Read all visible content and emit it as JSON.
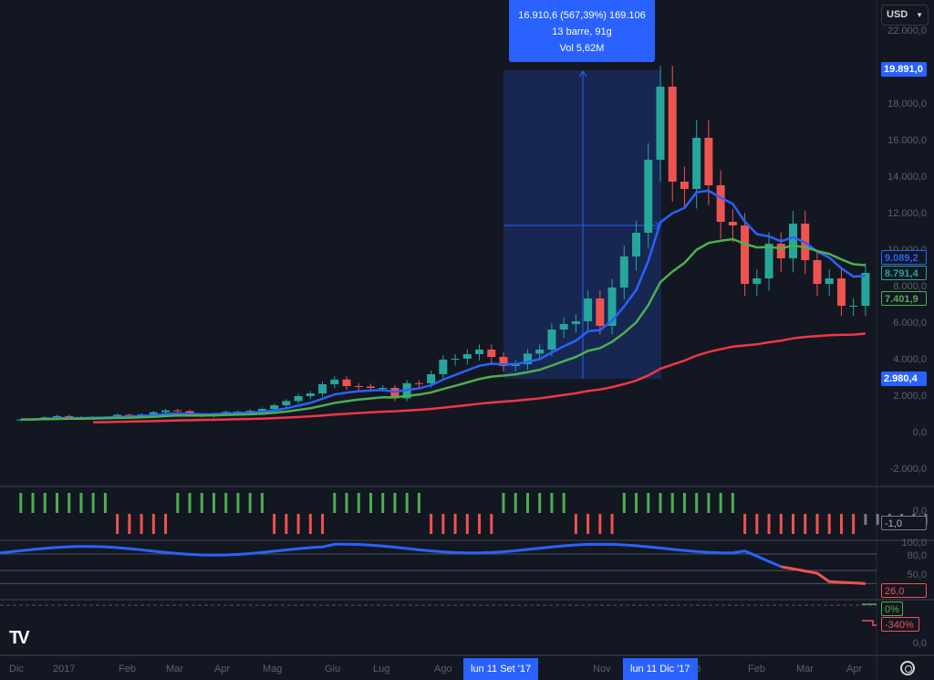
{
  "currency": {
    "label": "USD"
  },
  "colors": {
    "up": "#26a69a",
    "down": "#ef5350",
    "ma_fast": "#2962ff",
    "ma_mid": "#4caf50",
    "ma_slow": "#f23645",
    "bg": "#131722",
    "accent": "#2962ff",
    "neutral": "#787b86"
  },
  "measure": {
    "line1": "16.910,6 (567,39%) 169.106",
    "line2": "13 barre, 91g",
    "line3": "Vol 5,62M"
  },
  "price_axis": {
    "ticks": [
      "22.000,0",
      "18.000,0",
      "16.000,0",
      "14.000,0",
      "12.000,0",
      "10.000,0",
      "8.000,0",
      "6.000,0",
      "4.000,0",
      "2.000,0",
      "0,0",
      "-2.000,0"
    ],
    "tick_values": [
      22000,
      18000,
      16000,
      14000,
      12000,
      10000,
      8000,
      6000,
      4000,
      2000,
      0,
      -2000
    ]
  },
  "tags": {
    "high": "19.891,0",
    "ma_fast": "9.089,2",
    "last": "8.791,4",
    "ma_mid": "7.401,9",
    "ma_slow": "2.980,4"
  },
  "pane1": {
    "zero": "0,0",
    "value": "-1,0",
    "signals": [
      1,
      1,
      1,
      1,
      1,
      1,
      1,
      1,
      -1,
      -1,
      -1,
      -1,
      -1,
      1,
      1,
      1,
      1,
      1,
      1,
      1,
      1,
      -1,
      -1,
      -1,
      -1,
      -1,
      1,
      1,
      1,
      1,
      1,
      1,
      1,
      1,
      -1,
      -1,
      -1,
      -1,
      -1,
      -1,
      1,
      1,
      1,
      1,
      1,
      1,
      -1,
      -1,
      -1,
      -1,
      1,
      1,
      1,
      1,
      1,
      1,
      1,
      1,
      1,
      1,
      -1,
      -1,
      -1,
      -1,
      -1,
      -1,
      -1,
      -1,
      -1,
      -1,
      0,
      0,
      0,
      0,
      0,
      0
    ]
  },
  "pane2": {
    "ticks": [
      "100,0",
      "80,0",
      "50,0"
    ],
    "value": "26,0"
  },
  "pane3": {
    "green": "0%",
    "red": "-340%",
    "zero": "0,0"
  },
  "time_axis": {
    "labels": [
      "Dic",
      "2017",
      "Feb",
      "Mar",
      "Apr",
      "Mag",
      "Giu",
      "Lug",
      "Ago",
      "Nov",
      "18",
      "Feb",
      "Mar",
      "Apr"
    ],
    "highlight_start": "lun 11 Set '17",
    "highlight_end": "lun 11 Dic '17"
  },
  "chart_data": {
    "type": "candlestick",
    "interval": "1W",
    "first_open": 740,
    "closes": [
      770,
      790,
      890,
      960,
      900,
      820,
      920,
      920,
      1030,
      1000,
      1050,
      1170,
      1270,
      1230,
      1030,
      960,
      1080,
      1190,
      1200,
      1250,
      1350,
      1550,
      1780,
      2050,
      2200,
      2700,
      2960,
      2600,
      2580,
      2500,
      2500,
      1930,
      2760,
      2750,
      3250,
      4050,
      4100,
      4350,
      4600,
      4200,
      3700,
      3800,
      4380,
      4600,
      5700,
      6000,
      6150,
      7400,
      5900,
      8000,
      9700,
      11000,
      15000,
      19000,
      13800,
      13400,
      16200,
      13600,
      11600,
      11400,
      8200,
      8500,
      10400,
      9600,
      11500,
      9500,
      8200,
      8500,
      7000,
      7000,
      8800
    ],
    "measure_from_index": 40,
    "measure_to_index": 53
  }
}
